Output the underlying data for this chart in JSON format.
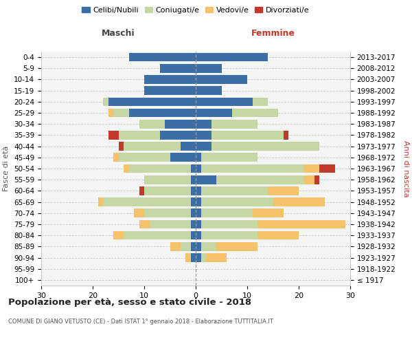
{
  "age_groups": [
    "100+",
    "95-99",
    "90-94",
    "85-89",
    "80-84",
    "75-79",
    "70-74",
    "65-69",
    "60-64",
    "55-59",
    "50-54",
    "45-49",
    "40-44",
    "35-39",
    "30-34",
    "25-29",
    "20-24",
    "15-19",
    "10-14",
    "5-9",
    "0-4"
  ],
  "birth_years": [
    "≤ 1917",
    "1918-1922",
    "1923-1927",
    "1928-1932",
    "1933-1937",
    "1938-1942",
    "1943-1947",
    "1948-1952",
    "1953-1957",
    "1958-1962",
    "1963-1967",
    "1968-1972",
    "1973-1977",
    "1978-1982",
    "1983-1987",
    "1988-1992",
    "1993-1997",
    "1998-2002",
    "2003-2007",
    "2008-2012",
    "2013-2017"
  ],
  "male_celibinubili": [
    0,
    0,
    1,
    1,
    1,
    1,
    1,
    1,
    1,
    1,
    1,
    5,
    3,
    7,
    6,
    13,
    17,
    10,
    10,
    7,
    13
  ],
  "male_coniugati": [
    0,
    0,
    0,
    2,
    13,
    8,
    9,
    17,
    9,
    9,
    12,
    10,
    11,
    8,
    5,
    3,
    1,
    0,
    0,
    0,
    0
  ],
  "male_vedovi": [
    0,
    0,
    1,
    2,
    2,
    2,
    2,
    1,
    0,
    0,
    1,
    1,
    0,
    0,
    0,
    1,
    0,
    0,
    0,
    0,
    0
  ],
  "male_divorziati": [
    0,
    0,
    0,
    0,
    0,
    0,
    0,
    0,
    1,
    0,
    0,
    0,
    1,
    2,
    0,
    0,
    0,
    0,
    0,
    0,
    0
  ],
  "female_celibinubili": [
    0,
    0,
    1,
    1,
    1,
    1,
    1,
    1,
    1,
    4,
    1,
    1,
    3,
    3,
    3,
    7,
    11,
    5,
    10,
    5,
    14
  ],
  "female_coniugati": [
    0,
    0,
    1,
    3,
    11,
    11,
    10,
    14,
    13,
    17,
    20,
    11,
    21,
    14,
    9,
    9,
    3,
    0,
    0,
    0,
    0
  ],
  "female_vedovi": [
    0,
    0,
    4,
    8,
    8,
    17,
    6,
    10,
    6,
    2,
    3,
    0,
    0,
    0,
    0,
    0,
    0,
    0,
    0,
    0,
    0
  ],
  "female_divorziati": [
    0,
    0,
    0,
    0,
    0,
    0,
    0,
    0,
    0,
    1,
    3,
    0,
    0,
    1,
    0,
    0,
    0,
    0,
    0,
    0,
    0
  ],
  "color_celibinubili": "#3a6ea5",
  "color_coniugati": "#c5d8a4",
  "color_vedovi": "#f5c36c",
  "color_divorziati": "#c0392b",
  "title": "Popolazione per età, sesso e stato civile - 2018",
  "subtitle": "COMUNE DI GIANO VETUSTO (CE) - Dati ISTAT 1° gennaio 2018 - Elaborazione TUTTITALIA.IT",
  "xlabel_left": "Maschi",
  "xlabel_right": "Femmine",
  "ylabel_left": "Fasce di età",
  "ylabel_right": "Anni di nascita",
  "xlim": 30,
  "legend_labels": [
    "Celibi/Nubili",
    "Coniugati/e",
    "Vedovi/e",
    "Divorziati/e"
  ],
  "bg_color": "#f5f5f5",
  "grid_color": "#cccccc"
}
